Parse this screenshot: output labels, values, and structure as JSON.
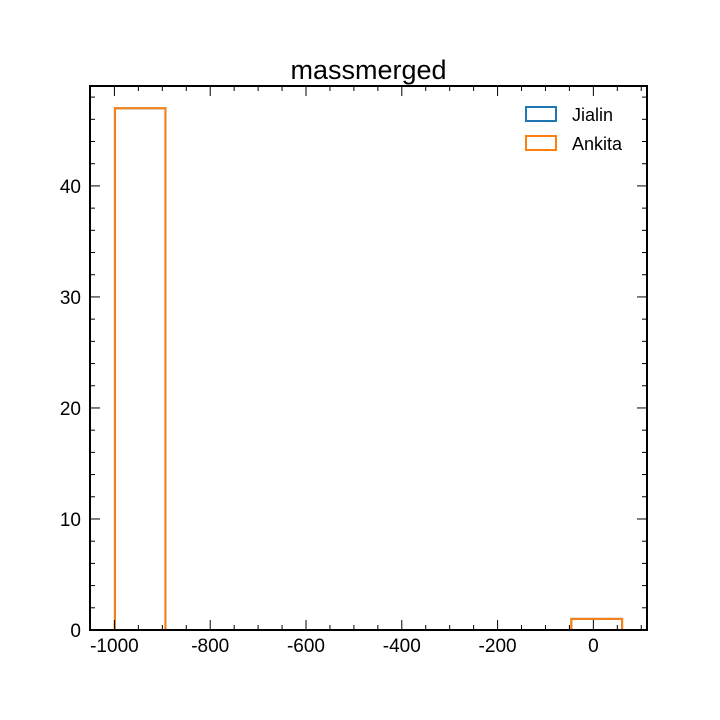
{
  "chart_data": {
    "type": "histogram",
    "title": "massmerged",
    "xlabel": "",
    "ylabel": "",
    "xlim": [
      -1051,
      112
    ],
    "ylim": [
      0,
      49
    ],
    "x_ticks_major": [
      -1000,
      -800,
      -600,
      -400,
      -200,
      0
    ],
    "x_tick_labels": [
      "-1000",
      "-800",
      "-600",
      "-400",
      "-200",
      "0"
    ],
    "y_ticks_major": [
      0,
      10,
      20,
      30,
      40
    ],
    "y_tick_labels": [
      "0",
      "10",
      "20",
      "30",
      "40"
    ],
    "legend_position": "top-right",
    "series": [
      {
        "name": "Jialin",
        "color": "#1f77b4",
        "bins": [
          {
            "x0": -999,
            "x1": -893.5,
            "count": 47
          },
          {
            "x0": -46,
            "x1": 60,
            "count": 1
          }
        ]
      },
      {
        "name": "Ankita",
        "color": "#ff7f0e",
        "bins": [
          {
            "x0": -999,
            "x1": -893.5,
            "count": 47
          },
          {
            "x0": -46,
            "x1": 60,
            "count": 1
          }
        ]
      }
    ]
  }
}
